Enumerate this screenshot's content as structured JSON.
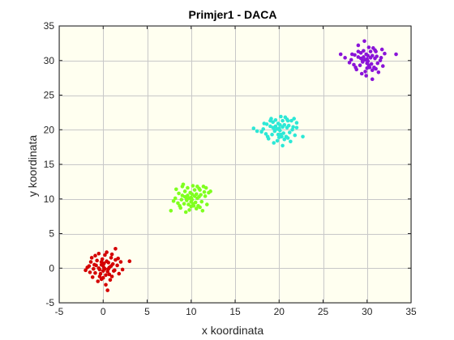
{
  "chart_data": {
    "type": "scatter",
    "title": "Primjer1 - DACA",
    "xlabel": "x koordinata",
    "ylabel": "y koordinata",
    "xlim": [
      -5,
      35
    ],
    "ylim": [
      -5,
      35
    ],
    "xticks": [
      -5,
      0,
      5,
      10,
      15,
      20,
      25,
      30,
      35
    ],
    "yticks": [
      -5,
      0,
      5,
      10,
      15,
      20,
      25,
      30,
      35
    ],
    "grid": true,
    "background_color": "#fffff0",
    "series": [
      {
        "color": "#d40000",
        "points": [
          [
            0.0,
            0.3
          ],
          [
            -0.4,
            -0.2
          ],
          [
            0.6,
            0.8
          ],
          [
            -1.0,
            0.5
          ],
          [
            1.2,
            -0.4
          ],
          [
            0.3,
            -1.0
          ],
          [
            -0.7,
            1.1
          ],
          [
            0.9,
            1.5
          ],
          [
            -1.5,
            -0.6
          ],
          [
            0.2,
            1.9
          ],
          [
            -0.2,
            -1.6
          ],
          [
            1.6,
            0.4
          ],
          [
            -1.8,
            0.1
          ],
          [
            0.5,
            -0.5
          ],
          [
            -0.5,
            0.0
          ],
          [
            1.0,
            -1.2
          ],
          [
            -1.2,
            -1.3
          ],
          [
            0.1,
            0.7
          ],
          [
            0.4,
            2.3
          ],
          [
            -0.9,
            1.8
          ],
          [
            2.0,
            0.9
          ],
          [
            1.4,
            1.2
          ],
          [
            -0.3,
            -0.8
          ],
          [
            0.7,
            0.1
          ],
          [
            -1.1,
            -0.1
          ],
          [
            0.0,
            -0.4
          ],
          [
            1.8,
            -0.8
          ],
          [
            -0.6,
            -1.9
          ],
          [
            0.3,
            -2.4
          ],
          [
            0.5,
            -3.2
          ],
          [
            1.4,
            2.8
          ],
          [
            3.0,
            1.0
          ],
          [
            -2.0,
            -0.3
          ],
          [
            -1.4,
            0.9
          ],
          [
            0.8,
            -1.7
          ],
          [
            1.1,
            0.6
          ],
          [
            -0.1,
            1.3
          ],
          [
            -0.8,
            0.4
          ],
          [
            0.6,
            -0.1
          ],
          [
            -0.2,
            0.5
          ],
          [
            0.2,
            -0.1
          ],
          [
            1.3,
            -0.3
          ],
          [
            -1.6,
            0.3
          ],
          [
            0.9,
            0.3
          ],
          [
            -0.4,
            -1.2
          ],
          [
            0.4,
            1.0
          ],
          [
            -0.9,
            -0.7
          ],
          [
            1.7,
            1.4
          ],
          [
            -0.5,
            2.1
          ],
          [
            2.2,
            -0.2
          ],
          [
            0.0,
            -1.4
          ],
          [
            -1.3,
            1.5
          ],
          [
            1.0,
            2.0
          ],
          [
            -0.2,
            0.9
          ],
          [
            0.7,
            -0.9
          ],
          [
            0.1,
            0.0
          ]
        ]
      },
      {
        "color": "#7fff1f",
        "points": [
          [
            10.0,
            10.2
          ],
          [
            9.5,
            9.8
          ],
          [
            10.6,
            10.7
          ],
          [
            9.0,
            10.5
          ],
          [
            11.2,
            9.6
          ],
          [
            10.3,
            9.0
          ],
          [
            9.3,
            11.1
          ],
          [
            10.9,
            11.5
          ],
          [
            8.5,
            9.4
          ],
          [
            10.2,
            11.9
          ],
          [
            9.8,
            8.4
          ],
          [
            11.6,
            10.4
          ],
          [
            8.2,
            10.1
          ],
          [
            10.5,
            9.5
          ],
          [
            9.5,
            10.0
          ],
          [
            11.0,
            8.8
          ],
          [
            8.8,
            8.7
          ],
          [
            10.1,
            10.7
          ],
          [
            9.1,
            12.1
          ],
          [
            11.4,
            11.8
          ],
          [
            12.0,
            10.9
          ],
          [
            7.7,
            8.3
          ],
          [
            9.7,
            9.2
          ],
          [
            10.7,
            10.1
          ],
          [
            8.9,
            9.9
          ],
          [
            10.0,
            9.6
          ],
          [
            11.8,
            9.2
          ],
          [
            9.4,
            8.1
          ],
          [
            10.4,
            11.3
          ],
          [
            12.2,
            11.1
          ],
          [
            8.3,
            11.4
          ],
          [
            10.8,
            9.0
          ],
          [
            9.9,
            10.9
          ],
          [
            9.2,
            9.3
          ],
          [
            11.1,
            10.6
          ],
          [
            10.6,
            8.6
          ],
          [
            9.6,
            11.6
          ],
          [
            8.6,
            10.8
          ],
          [
            11.5,
            11.0
          ],
          [
            10.2,
            9.3
          ],
          [
            9.0,
            11.8
          ],
          [
            10.9,
            10.3
          ],
          [
            8.0,
            9.7
          ],
          [
            11.3,
            8.3
          ],
          [
            10.4,
            10.4
          ],
          [
            9.6,
            10.5
          ],
          [
            10.0,
            8.9
          ],
          [
            11.7,
            11.6
          ],
          [
            9.3,
            10.3
          ],
          [
            10.7,
            11.8
          ],
          [
            8.7,
            9.0
          ],
          [
            10.1,
            9.9
          ],
          [
            11.0,
            11.3
          ],
          [
            9.8,
            10.1
          ]
        ]
      },
      {
        "color": "#2ce8d6",
        "points": [
          [
            20.0,
            20.2
          ],
          [
            19.5,
            19.8
          ],
          [
            20.6,
            20.7
          ],
          [
            19.0,
            20.5
          ],
          [
            21.2,
            19.6
          ],
          [
            20.3,
            19.0
          ],
          [
            19.3,
            21.1
          ],
          [
            20.9,
            21.5
          ],
          [
            18.5,
            19.4
          ],
          [
            20.2,
            21.9
          ],
          [
            19.8,
            18.4
          ],
          [
            21.6,
            20.4
          ],
          [
            18.2,
            20.1
          ],
          [
            20.5,
            19.5
          ],
          [
            19.5,
            20.0
          ],
          [
            21.0,
            18.8
          ],
          [
            18.8,
            18.7
          ],
          [
            20.1,
            20.7
          ],
          [
            19.1,
            21.6
          ],
          [
            21.4,
            21.3
          ],
          [
            22.0,
            20.3
          ],
          [
            17.1,
            20.2
          ],
          [
            17.5,
            19.8
          ],
          [
            22.7,
            19.0
          ],
          [
            20.4,
            17.7
          ],
          [
            19.9,
            19.3
          ],
          [
            21.8,
            19.2
          ],
          [
            19.4,
            18.1
          ],
          [
            20.4,
            21.3
          ],
          [
            22.0,
            21.0
          ],
          [
            18.3,
            20.9
          ],
          [
            20.8,
            19.0
          ],
          [
            19.9,
            20.9
          ],
          [
            19.2,
            19.3
          ],
          [
            21.1,
            20.6
          ],
          [
            20.6,
            18.6
          ],
          [
            19.6,
            21.4
          ],
          [
            18.6,
            20.8
          ],
          [
            21.5,
            20.0
          ],
          [
            20.2,
            19.3
          ],
          [
            19.0,
            21.3
          ],
          [
            20.9,
            20.3
          ],
          [
            18.0,
            19.7
          ],
          [
            21.3,
            18.3
          ],
          [
            20.4,
            20.4
          ],
          [
            19.6,
            20.5
          ],
          [
            20.0,
            18.9
          ],
          [
            21.7,
            21.6
          ],
          [
            19.3,
            20.3
          ],
          [
            20.7,
            21.8
          ],
          [
            18.7,
            19.0
          ],
          [
            20.1,
            19.9
          ],
          [
            21.0,
            21.3
          ],
          [
            19.8,
            20.1
          ]
        ]
      },
      {
        "color": "#8a14d8",
        "points": [
          [
            30.0,
            30.2
          ],
          [
            29.5,
            29.8
          ],
          [
            30.6,
            30.7
          ],
          [
            29.0,
            30.5
          ],
          [
            31.2,
            29.6
          ],
          [
            30.3,
            29.0
          ],
          [
            29.3,
            31.1
          ],
          [
            30.9,
            31.5
          ],
          [
            28.5,
            29.4
          ],
          [
            30.2,
            31.9
          ],
          [
            29.8,
            28.4
          ],
          [
            31.6,
            30.4
          ],
          [
            28.2,
            30.1
          ],
          [
            30.5,
            29.5
          ],
          [
            29.5,
            30.0
          ],
          [
            31.0,
            28.8
          ],
          [
            28.8,
            28.7
          ],
          [
            30.1,
            30.7
          ],
          [
            29.7,
            32.8
          ],
          [
            29.0,
            32.2
          ],
          [
            27.5,
            30.4
          ],
          [
            27.0,
            30.9
          ],
          [
            33.3,
            30.9
          ],
          [
            30.6,
            27.3
          ],
          [
            29.9,
            27.8
          ],
          [
            30.0,
            29.6
          ],
          [
            31.8,
            29.2
          ],
          [
            29.4,
            28.1
          ],
          [
            30.4,
            31.3
          ],
          [
            32.0,
            31.0
          ],
          [
            28.3,
            30.9
          ],
          [
            30.8,
            29.0
          ],
          [
            29.9,
            30.9
          ],
          [
            29.2,
            29.3
          ],
          [
            31.1,
            30.6
          ],
          [
            30.6,
            28.6
          ],
          [
            29.6,
            31.4
          ],
          [
            28.6,
            30.8
          ],
          [
            31.5,
            30.0
          ],
          [
            30.2,
            29.3
          ],
          [
            29.0,
            31.3
          ],
          [
            30.9,
            30.3
          ],
          [
            28.0,
            29.7
          ],
          [
            31.3,
            28.3
          ],
          [
            30.4,
            30.4
          ],
          [
            29.6,
            30.5
          ],
          [
            30.0,
            28.9
          ],
          [
            31.7,
            31.6
          ],
          [
            29.3,
            30.3
          ],
          [
            30.7,
            31.8
          ],
          [
            28.7,
            29.0
          ],
          [
            30.1,
            29.9
          ],
          [
            31.0,
            31.3
          ],
          [
            29.8,
            30.1
          ]
        ]
      }
    ]
  }
}
